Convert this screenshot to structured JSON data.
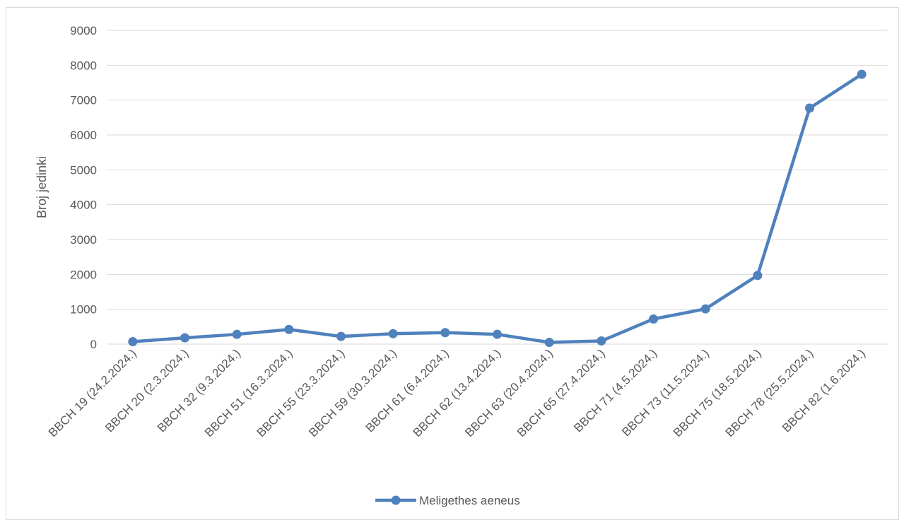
{
  "chart_data": {
    "type": "line",
    "title": "",
    "xlabel": "",
    "ylabel": "Broj jedinki",
    "ylim": [
      0,
      9000
    ],
    "yticks": [
      0,
      1000,
      2000,
      3000,
      4000,
      5000,
      6000,
      7000,
      8000,
      9000
    ],
    "grid": true,
    "legend_position": "bottom",
    "categories": [
      "BBCH 19 (24.2.2024.)",
      "BBCH 20 (2.3.2024.)",
      "BBCH 32 (9.3.2024.)",
      "BBCH 51 (16.3.2024.)",
      "BBCH 55 (23.3.2024.)",
      "BBCH 59 (30.3.2024.)",
      "BBCH 61 (6.4.2024.)",
      "BBCH 62 (13.4.2024.)",
      "BBCH 63 (20.4.2024.)",
      "BBCH 65 (27.4.2024.)",
      "BBCH 71 (4.5.2024.)",
      "BBCH 73 (11.5.2024.)",
      "BBCH 75 (18.5.2024.)",
      "BBCH 78 (25.5.2024.)",
      "BBCH 82 (1.6.2024.)"
    ],
    "series": [
      {
        "name": "Meligethes aeneus",
        "color": "#4f81bd",
        "values": [
          70,
          180,
          280,
          420,
          220,
          300,
          330,
          280,
          50,
          90,
          720,
          1010,
          1970,
          6770,
          7740
        ]
      }
    ]
  }
}
